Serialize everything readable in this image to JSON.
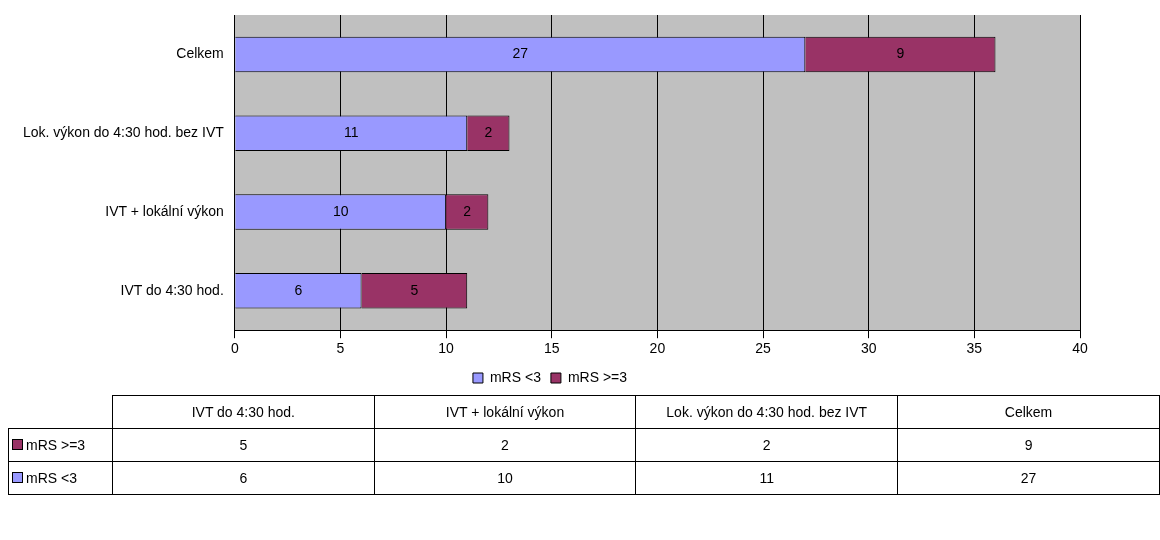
{
  "chart_data": [
    {
      "type": "bar",
      "orientation": "horizontal",
      "stacked": true,
      "categories": [
        "Celkem",
        "Lok. výkon do 4:30 hod. bez IVT",
        "IVT + lokální výkon",
        "IVT do 4:30 hod."
      ],
      "series": [
        {
          "name": "mRS <3",
          "color": "#9999ff",
          "values": [
            27,
            11,
            10,
            6
          ]
        },
        {
          "name": "mRS >=3",
          "color": "#993366",
          "values": [
            9,
            2,
            2,
            5
          ]
        }
      ],
      "xlim": [
        0,
        40
      ],
      "xticks": [
        0,
        5,
        10,
        15,
        20,
        25,
        30,
        35,
        40
      ],
      "grid": "x",
      "legend": "bottom",
      "data_labels": true
    },
    {
      "type": "other",
      "categories": [
        "IVT do 4:30 hod.",
        "IVT + lokální výkon",
        "Lok. výkon do 4:30 hod. bez IVT",
        "Celkem"
      ],
      "series": [
        {
          "name": "mRS >=3",
          "color": "#993366",
          "values": [
            5,
            2,
            2,
            9
          ]
        },
        {
          "name": "mRS <3",
          "color": "#9999ff",
          "values": [
            6,
            10,
            11,
            27
          ]
        }
      ],
      "data_labels": true
    }
  ]
}
